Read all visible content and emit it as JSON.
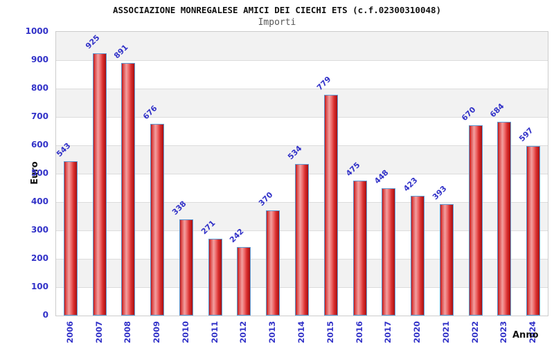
{
  "header": {
    "title": "ASSOCIAZIONE MONREGALESE AMICI DEI CIECHI ETS (c.f.02300310048)",
    "subtitle": "Importi"
  },
  "chart_data": {
    "type": "bar",
    "title": "ASSOCIAZIONE MONREGALESE AMICI DEI CIECHI ETS (c.f.02300310048)",
    "subtitle": "Importi",
    "xlabel": "Anno",
    "ylabel": "Euro",
    "categories": [
      "2006",
      "2007",
      "2008",
      "2009",
      "2010",
      "2011",
      "2012",
      "2013",
      "2014",
      "2015",
      "2016",
      "2017",
      "2020",
      "2021",
      "2022",
      "2023",
      "2024"
    ],
    "values": [
      543,
      925,
      891,
      676,
      338,
      271,
      242,
      370,
      534,
      779,
      475,
      448,
      423,
      393,
      670,
      684,
      597
    ],
    "ylim": [
      0,
      1000
    ],
    "ytick_step": 100,
    "yticks": [
      0,
      100,
      200,
      300,
      400,
      500,
      600,
      700,
      800,
      900,
      1000
    ],
    "grid": "horizontal-gridlines-with-alternating-bands",
    "legend_position": "none",
    "bar_value_labels_rotation_deg": -45,
    "x_tick_rotation_deg": -90
  },
  "colors": {
    "label_blue": "#3232c8",
    "bar_border": "#5b9bd5",
    "bar_dark": "#c01515",
    "bar_mid": "#d92f2f",
    "bar_light": "#f2a0a0",
    "band_gray": "#f2f2f2",
    "gridline": "#dcdcdc",
    "plot_border": "#cccccc",
    "title_color": "#111111",
    "subtitle_color": "#555555",
    "axis_title_color": "#111111"
  }
}
